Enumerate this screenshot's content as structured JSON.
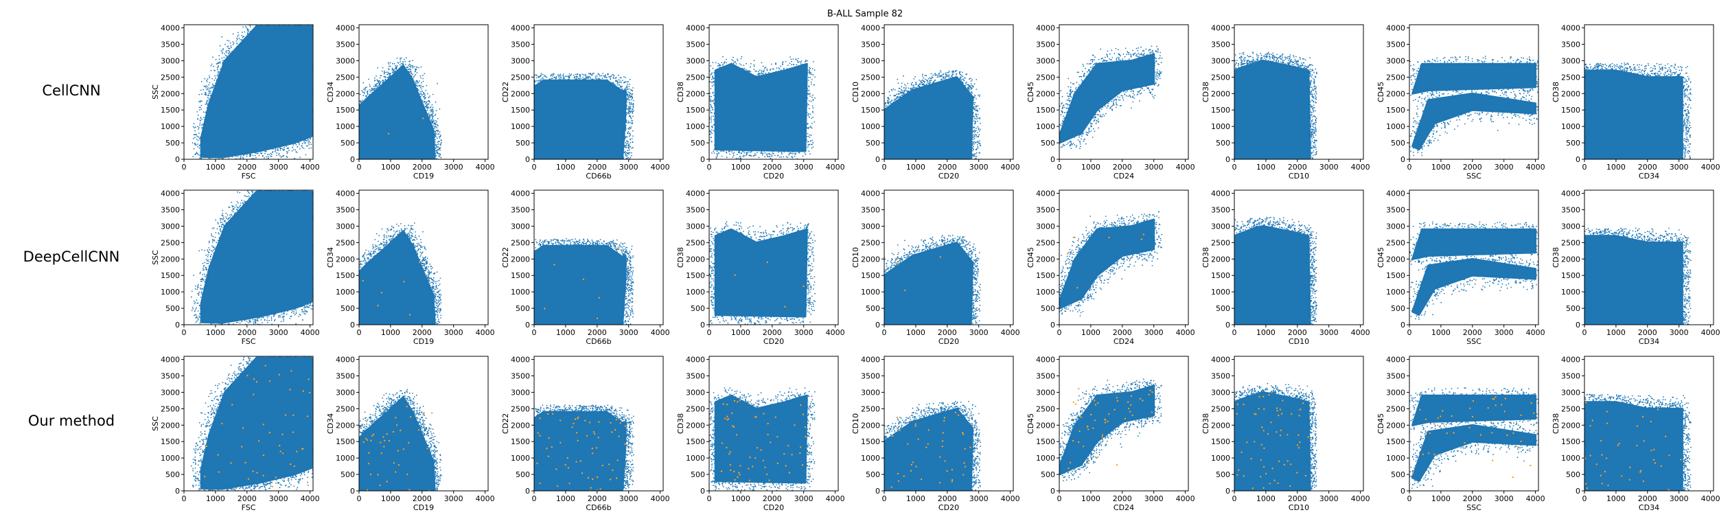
{
  "figure": {
    "title": "B-ALL Sample 82",
    "rows": [
      "CellCNN",
      "DeepCellCNN",
      "Our method"
    ]
  },
  "colors": {
    "cells": "#1f77b4",
    "selected": "#ff9f1c",
    "axes": "#000000",
    "background": "#ffffff"
  },
  "chart_data": {
    "type": "scatter",
    "title": "B-ALL Sample 82",
    "xlim": [
      0,
      4096
    ],
    "ylim": [
      0,
      4096
    ],
    "ticks": [
      0,
      500,
      1000,
      1500,
      2000,
      2500,
      3000,
      3500,
      4000
    ],
    "xticks": [
      0,
      1000,
      2000,
      3000,
      4000
    ],
    "series": [
      {
        "name": "",
        "color": "#1f77b4"
      },
      {
        "name": "",
        "color": "#ff9f1c"
      }
    ],
    "panels": [
      {
        "x": "FSC",
        "y": "SSC"
      },
      {
        "x": "CD19",
        "y": "CD34"
      },
      {
        "x": "CD66b",
        "y": "CD22"
      },
      {
        "x": "CD20",
        "y": "CD38"
      },
      {
        "x": "CD20",
        "y": "CD10"
      },
      {
        "x": "CD24",
        "y": "CD45"
      },
      {
        "x": "CD10",
        "y": "CD38"
      },
      {
        "x": "SSC",
        "y": "CD45"
      },
      {
        "x": "CD34",
        "y": "CD38"
      }
    ],
    "highlight_counts": [
      [
        0,
        2,
        0,
        0,
        0,
        0,
        0,
        0,
        0
      ],
      [
        0,
        6,
        6,
        4,
        4,
        6,
        0,
        0,
        0
      ],
      [
        45,
        40,
        60,
        60,
        40,
        45,
        60,
        40,
        40
      ]
    ]
  }
}
